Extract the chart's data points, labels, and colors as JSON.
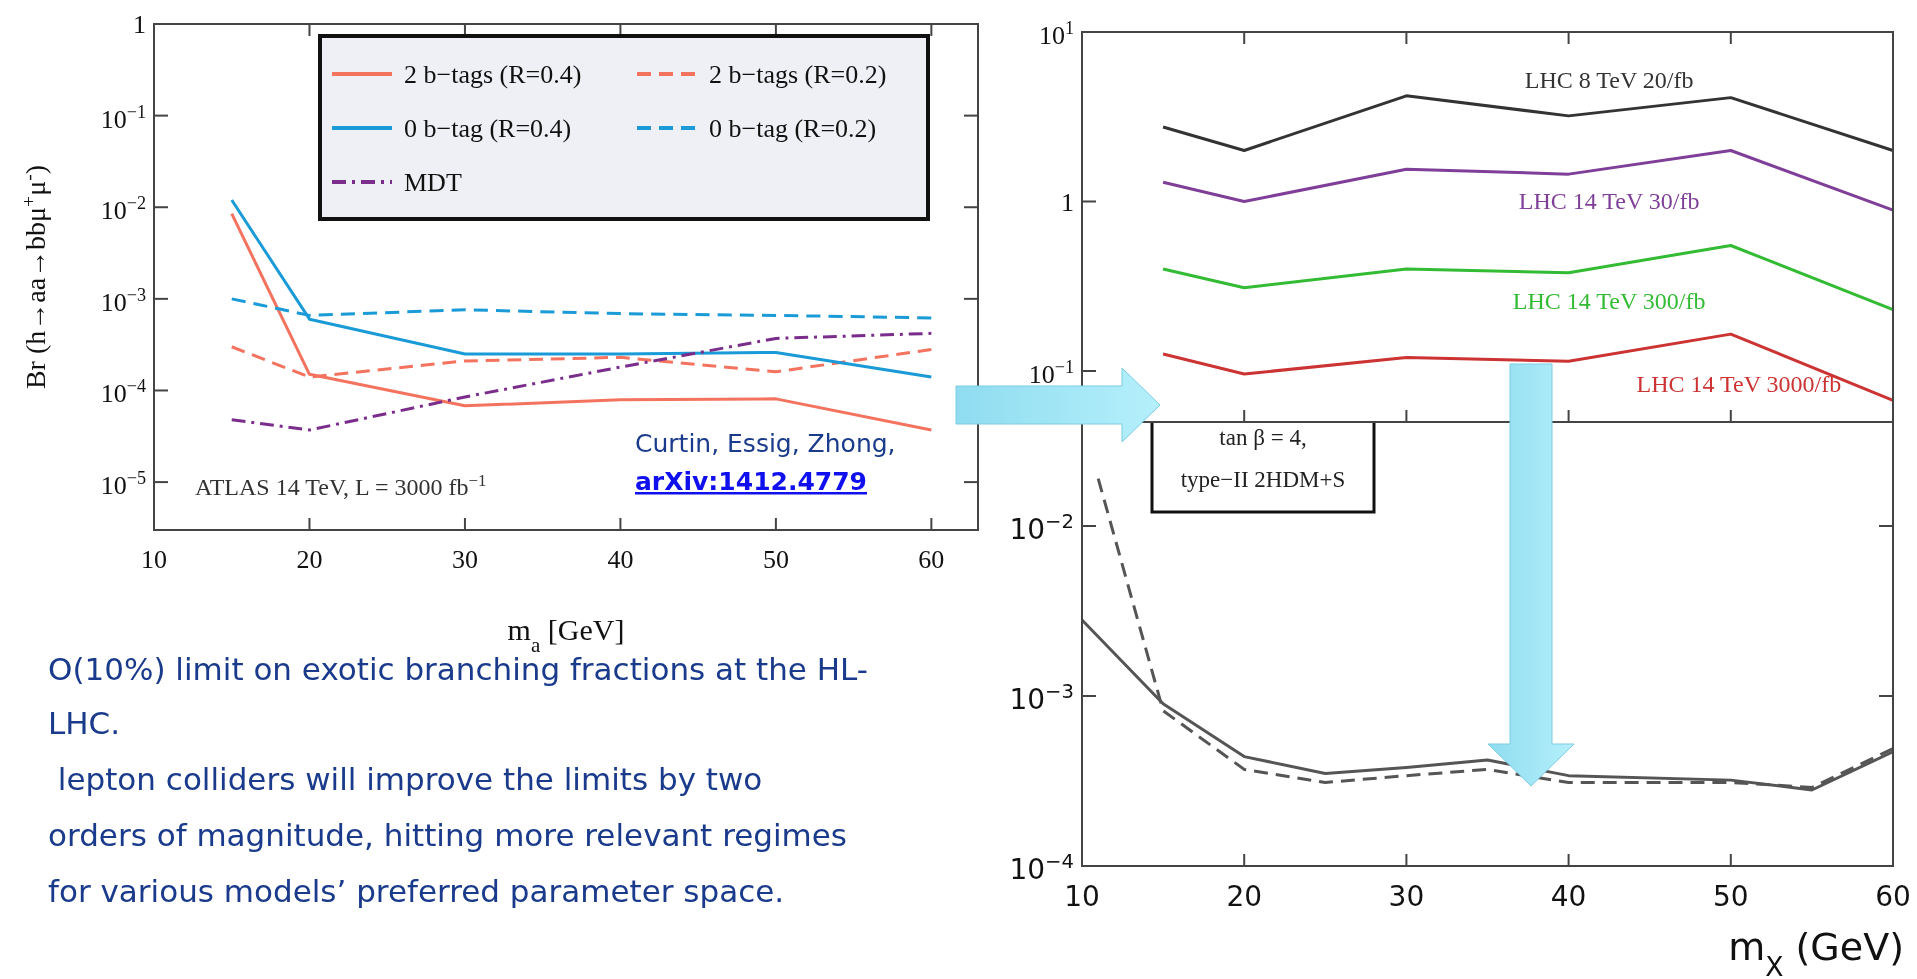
{
  "chart_data": [
    {
      "type": "line",
      "xlabel": "m$_{a}$ [GeV]",
      "ylabel": "Br (h→aa→bbμ$^{+}$μ$^{-}$)",
      "log": "y",
      "xlim": [
        10,
        63
      ],
      "ylim": [
        3e-06,
        1
      ],
      "xticks": [
        10,
        20,
        30,
        40,
        50,
        60
      ],
      "yticks": [
        {
          "value": 1e-05,
          "label": "10$^{−5}$"
        },
        {
          "value": 0.0001,
          "label": "10$^{−4}$"
        },
        {
          "value": 0.001,
          "label": "10$^{−3}$"
        },
        {
          "value": 0.01,
          "label": "10$^{−2}$"
        },
        {
          "value": 0.1,
          "label": "10$^{−1}$"
        },
        {
          "value": 1,
          "label": "1"
        }
      ],
      "legend": "top right",
      "x": [
        15,
        20,
        30,
        40,
        50,
        60
      ],
      "annotations": [
        "ATLAS 14 TeV, L = 3000 fb$^{−1}$",
        "Curtin, Essig, Zhong,",
        "arXiv:1412.4779",
        "O(10%) limit on exotic branching fractions at the HL-",
        "LHC.",
        " lepton colliders will improve the limits by two",
        "orders of magnitude, hitting more relevant regimes",
        "for various models’ preferred parameter space."
      ],
      "series": [
        {
          "name": "2 b−tags (R=0.4)",
          "color": "#f4735f",
          "line_style": "solid",
          "values": [
            0.0085,
            0.00015,
            6.8e-05,
            7.9e-05,
            8.1e-05,
            3.7e-05
          ]
        },
        {
          "name": "2 b−tags (R=0.2)",
          "color": "#f4735f",
          "line_style": "dashed",
          "values": [
            0.0003,
            0.00014,
            0.00021,
            0.00023,
            0.00016,
            0.00028
          ]
        },
        {
          "name": "0 b−tag (R=0.4)",
          "color": "#1a9bd7",
          "line_style": "solid",
          "values": [
            0.012,
            0.0006,
            0.00025,
            0.00025,
            0.00026,
            0.00014
          ]
        },
        {
          "name": "0 b−tag (R=0.2)",
          "color": "#1a9bd7",
          "line_style": "dashed",
          "values": [
            0.001,
            0.00066,
            0.00076,
            0.00069,
            0.00066,
            0.00062
          ]
        },
        {
          "name": "MDT",
          "color": "#7b2d8b",
          "line_style": "dashdot",
          "values": [
            4.8e-05,
            3.7e-05,
            8.5e-05,
            0.00018,
            0.00037,
            0.00042
          ]
        }
      ]
    },
    {
      "type": "line",
      "log": "y",
      "xlim": [
        10,
        60
      ],
      "ylim": [
        0.05,
        10
      ],
      "tick_labels": "y",
      "xticks": [
        {
          "value": 20,
          "label": null
        },
        {
          "value": 30,
          "label": null
        },
        {
          "value": 40,
          "label": null
        },
        {
          "value": 50,
          "label": null
        },
        {
          "value": 60,
          "label": null
        }
      ],
      "yticks": [
        {
          "value": 0.1,
          "label": "10$^{−1}$"
        },
        {
          "value": 1,
          "label": "1"
        },
        {
          "value": 10,
          "label": "10$^{1}$"
        }
      ],
      "x": [
        15,
        20,
        30,
        40,
        50,
        60
      ],
      "series": [
        {
          "name": "LHC 8 TeV 20/fb",
          "color": "#333333",
          "values": [
            2.75,
            2.0,
            4.2,
            3.2,
            4.1,
            2.0
          ]
        },
        {
          "name": "LHC 14 TeV 30/fb",
          "color": "#7f3f98",
          "values": [
            1.3,
            1.0,
            1.55,
            1.45,
            2.0,
            0.89
          ]
        },
        {
          "name": "LHC 14 TeV 300/fb",
          "color": "#33bb33",
          "values": [
            0.4,
            0.31,
            0.4,
            0.38,
            0.55,
            0.23
          ]
        },
        {
          "name": "LHC 14 TeV 3000/fb",
          "color": "#cc3333",
          "values": [
            0.126,
            0.096,
            0.12,
            0.114,
            0.165,
            0.067
          ]
        }
      ]
    },
    {
      "type": "line",
      "log": "y",
      "xlabel": "m$_{X}$ (GeV)",
      "xlim": [
        10,
        60
      ],
      "ylim": [
        0.0001,
        0.1
      ],
      "xticks": [
        10,
        20,
        30,
        40,
        50,
        60
      ],
      "yticks": [
        {
          "value": 0.0001,
          "label": "10$^{−4}$"
        },
        {
          "value": 0.001,
          "label": "10$^{−3}$"
        },
        {
          "value": 0.01,
          "label": "10$^{−2}$"
        }
      ],
      "x": [
        10,
        15,
        20,
        25,
        30,
        35,
        40,
        50,
        55,
        60
      ],
      "annotations": [
        "tan β = 4,",
        "type−II 2HDM+S"
      ],
      "series": [
        {
          "color": "#555555",
          "line_style": "solid",
          "values": [
            0.0028,
            0.0009,
            0.00044,
            0.00035,
            0.00038,
            0.00042,
            0.00034,
            0.00032,
            0.00028,
            0.00047
          ]
        },
        {
          "color": "#555555",
          "line_style": "dashed",
          "x": [
            11,
            15,
            20,
            25,
            30,
            35,
            40,
            50,
            55,
            60
          ],
          "values": [
            0.019,
            0.00082,
            0.00037,
            0.00031,
            0.00034,
            0.00037,
            0.00031,
            0.00031,
            0.00029,
            0.00049
          ]
        }
      ]
    }
  ]
}
